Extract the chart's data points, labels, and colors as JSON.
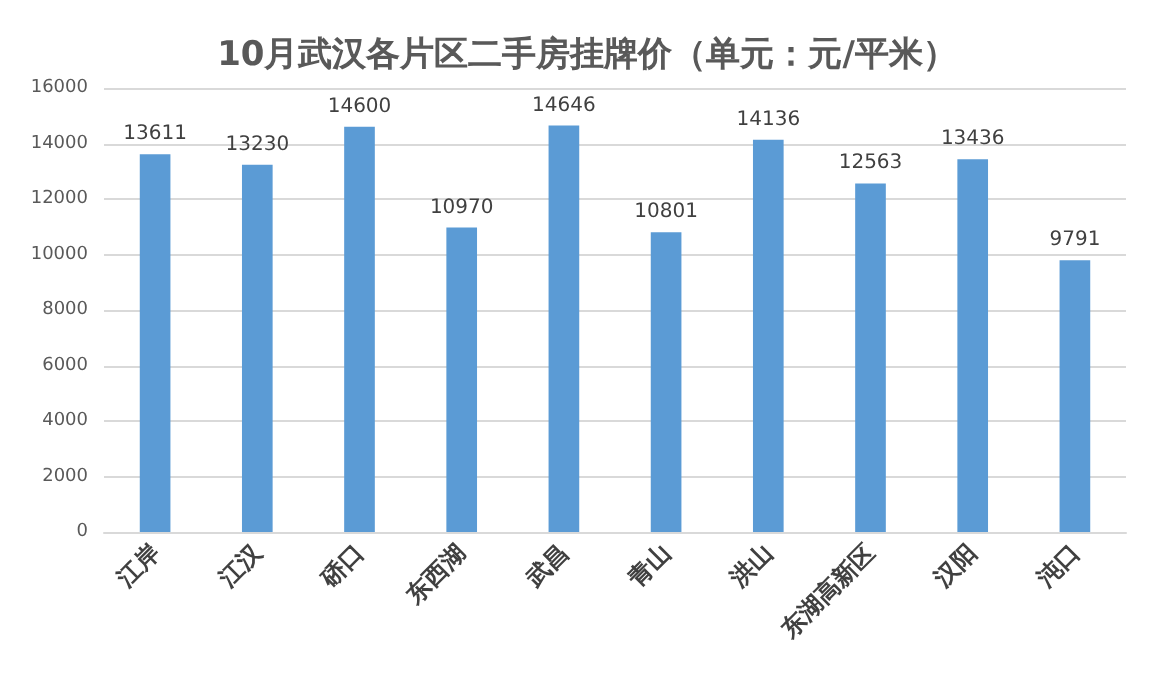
{
  "chart_data": {
    "type": "bar",
    "title": "10月武汉各片区二手房挂牌价（单元：元/平米）",
    "categories": [
      "江岸",
      "江汉",
      "硚口",
      "东西湖",
      "武昌",
      "青山",
      "洪山",
      "东湖高新区",
      "汉阳",
      "沌口"
    ],
    "values": [
      13611,
      13230,
      14600,
      10970,
      14646,
      10801,
      14136,
      12563,
      13436,
      9791
    ],
    "color": "#5b9bd5",
    "ylim": [
      0,
      16000
    ],
    "yticks": [
      0,
      2000,
      4000,
      6000,
      8000,
      10000,
      12000,
      14000,
      16000
    ],
    "grid": "y",
    "data_labels": true
  }
}
